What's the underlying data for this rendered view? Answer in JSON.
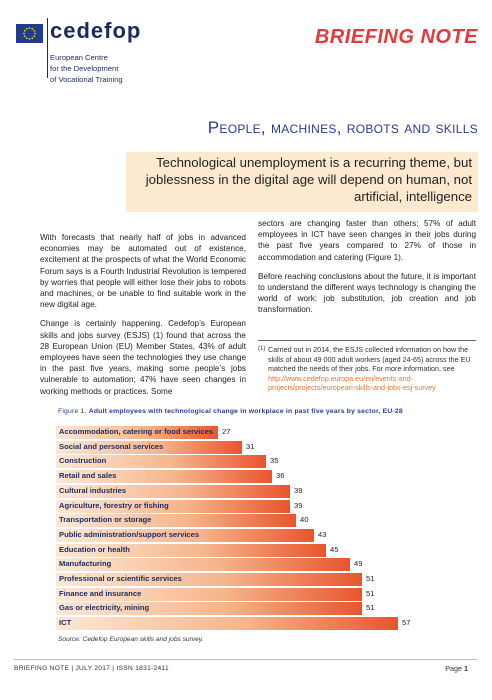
{
  "header": {
    "brand": "cedefop",
    "brand_sub_lines": [
      "European Centre",
      "for the Development",
      "of Vocational Training"
    ],
    "doc_type": "BRIEFING NOTE"
  },
  "title": "People, machines, robots and skills",
  "subtitle": "Technological unemployment is a recurring theme, but joblessness in the digital age will depend on human, not artificial, intelligence",
  "body": {
    "left": [
      "With forecasts that nearly half of jobs in advanced economies may be automated out of existence, excitement at the prospects of what the World Economic Forum says is a Fourth Industrial Revolution is tempered by worries that people will either lose their jobs to robots and machines, or be unable to find suitable work in the new digital age.",
      "Change is certainly happening. Cedefop’s European skills and jobs survey (ESJS) (1) found that across the 28 European Union (EU) Member States, 43% of adult employees have seen the technologies they use change in the past five years, making some people’s jobs vulnerable to automation; 47% have seen changes in working methods or practices. Some"
    ],
    "right": [
      "sectors are changing faster than others; 57% of adult employees in ICT have seen changes in their jobs during the past five years compared to 27% of those in accommodation and catering (Figure 1).",
      "Before reaching conclusions about the future, it is important to understand the different ways technology is changing the world of work: job substitution, job creation and job transformation."
    ]
  },
  "footnote": {
    "mark": "(1)",
    "text": "Carried out in 2014, the ESJS collected information on how the skills of about 49 000 adult workers (aged 24-65) across the EU matched the needs of their jobs. For more information, see",
    "link": "http://www.cedefop.europa.eu/en/events-and-projects/projects/european-skills-and-jobs-esj-survey"
  },
  "figure": {
    "label": "Figure 1.",
    "title": "Adult employees with technological change in workplace in past five years by sector, EU-28",
    "source": "Source: Cedefop European skills and jobs survey."
  },
  "chart_data": {
    "type": "bar",
    "orientation": "horizontal",
    "title": "Adult employees with technological change in workplace in past five years by sector, EU-28",
    "categories": [
      "Accommodation, catering or food services",
      "Social and personal services",
      "Construction",
      "Retail and sales",
      "Cultural industries",
      "Agriculture, forestry or fishing",
      "Transportation or storage",
      "Public administration/support services",
      "Education or health",
      "Manufacturing",
      "Professional or scientific services",
      "Finance and insurance",
      "Gas or electricity, mining",
      "ICT"
    ],
    "values": [
      27,
      31,
      35,
      36,
      39,
      39,
      40,
      43,
      45,
      49,
      51,
      51,
      51,
      57
    ],
    "xlim": [
      0,
      60
    ],
    "colors": {
      "bar_start": "#fbe8d6",
      "bar_end": "#e8552e"
    }
  },
  "footer": {
    "left": "BRIEFING NOTE | JULY 2017 | ISSN 1831-2411",
    "page_label": "Page",
    "page_number": "1"
  },
  "colors": {
    "accent_red": "#e23b3b",
    "navy": "#2c3a8c",
    "subtitle_bg": "#fde9cf"
  }
}
